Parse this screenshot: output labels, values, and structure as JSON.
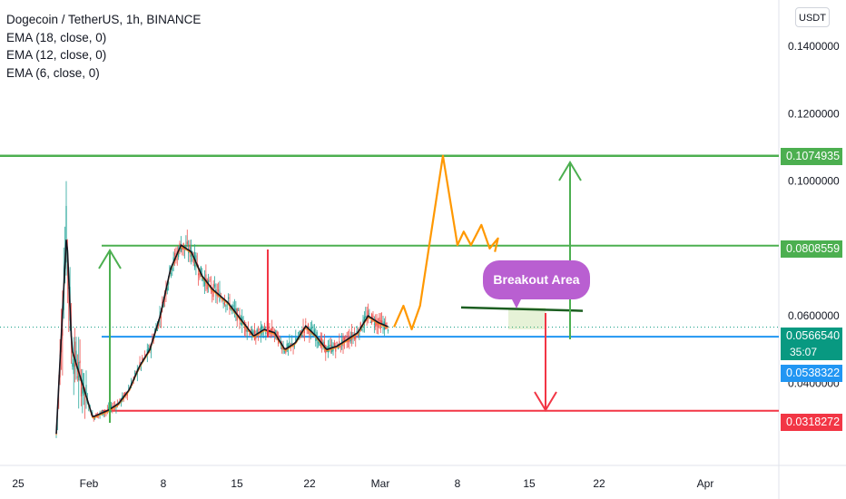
{
  "legend": {
    "title": "Dogecoin / TetherUS, 1h, BINANCE",
    "indicators": [
      "EMA (18, close, 0)",
      "EMA (12, close, 0)",
      "EMA (6, close, 0)"
    ]
  },
  "unit_badge": "USDT",
  "annotation": {
    "label": "Breakout Area"
  },
  "colors": {
    "green": "#4caf50",
    "red": "#f23645",
    "blue": "#2196f3",
    "orange": "#ff9800",
    "teal": "#089981",
    "callout": "#b95fd1",
    "dark_green": "#1b5e20"
  },
  "chart_data": {
    "type": "line",
    "title": "Dogecoin / TetherUS, 1h, BINANCE",
    "x_tick_labels": [
      "25",
      "Feb",
      "8",
      "15",
      "22",
      "Mar",
      "8",
      "15",
      "22",
      "Apr"
    ],
    "y_tick_labels": [
      "0.1400000",
      "0.1200000",
      "0.1000000",
      "0.0600000",
      "0.0400000"
    ],
    "y_range": [
      0.0,
      0.15
    ],
    "price_labels": {
      "upper_target": "0.1074935",
      "resistance": "0.0808559",
      "current": "0.0566540",
      "countdown": "35:07",
      "support": "0.0538322",
      "lower_target": "0.0318272"
    },
    "horizontal_levels": [
      {
        "value": 0.1074935,
        "color": "green"
      },
      {
        "value": 0.0808559,
        "color": "green"
      },
      {
        "value": 0.0538322,
        "color": "blue"
      },
      {
        "value": 0.0318272,
        "color": "red"
      }
    ],
    "breakout_level": 0.0625,
    "price_path": [
      [
        0.0,
        0.025
      ],
      [
        1.0,
        0.085
      ],
      [
        1.5,
        0.05
      ],
      [
        2.5,
        0.04
      ],
      [
        3.5,
        0.03
      ],
      [
        5.0,
        0.032
      ],
      [
        6.0,
        0.034
      ],
      [
        7.0,
        0.038
      ],
      [
        8.0,
        0.045
      ],
      [
        9.0,
        0.05
      ],
      [
        10.0,
        0.06
      ],
      [
        11.0,
        0.074
      ],
      [
        12.0,
        0.081
      ],
      [
        13.0,
        0.079
      ],
      [
        14.0,
        0.072
      ],
      [
        15.0,
        0.068
      ],
      [
        16.5,
        0.064
      ],
      [
        18.0,
        0.058
      ],
      [
        19.0,
        0.054
      ],
      [
        20.0,
        0.056
      ],
      [
        21.0,
        0.055
      ],
      [
        22.0,
        0.05
      ],
      [
        23.0,
        0.052
      ],
      [
        24.0,
        0.057
      ],
      [
        25.0,
        0.054
      ],
      [
        26.0,
        0.05
      ],
      [
        27.0,
        0.051
      ],
      [
        28.0,
        0.053
      ],
      [
        29.0,
        0.055
      ],
      [
        30.0,
        0.06
      ],
      [
        31.0,
        0.058
      ],
      [
        32.0,
        0.0567
      ]
    ],
    "projection": [
      [
        32.5,
        0.0567
      ],
      [
        33.4,
        0.063
      ],
      [
        34.2,
        0.056
      ],
      [
        35.0,
        0.063
      ],
      [
        37.2,
        0.1075
      ],
      [
        38.6,
        0.081
      ],
      [
        39.2,
        0.085
      ],
      [
        39.9,
        0.081
      ],
      [
        40.9,
        0.087
      ],
      [
        41.7,
        0.08
      ],
      [
        42.5,
        0.083
      ],
      [
        42.2,
        0.079
      ]
    ]
  }
}
